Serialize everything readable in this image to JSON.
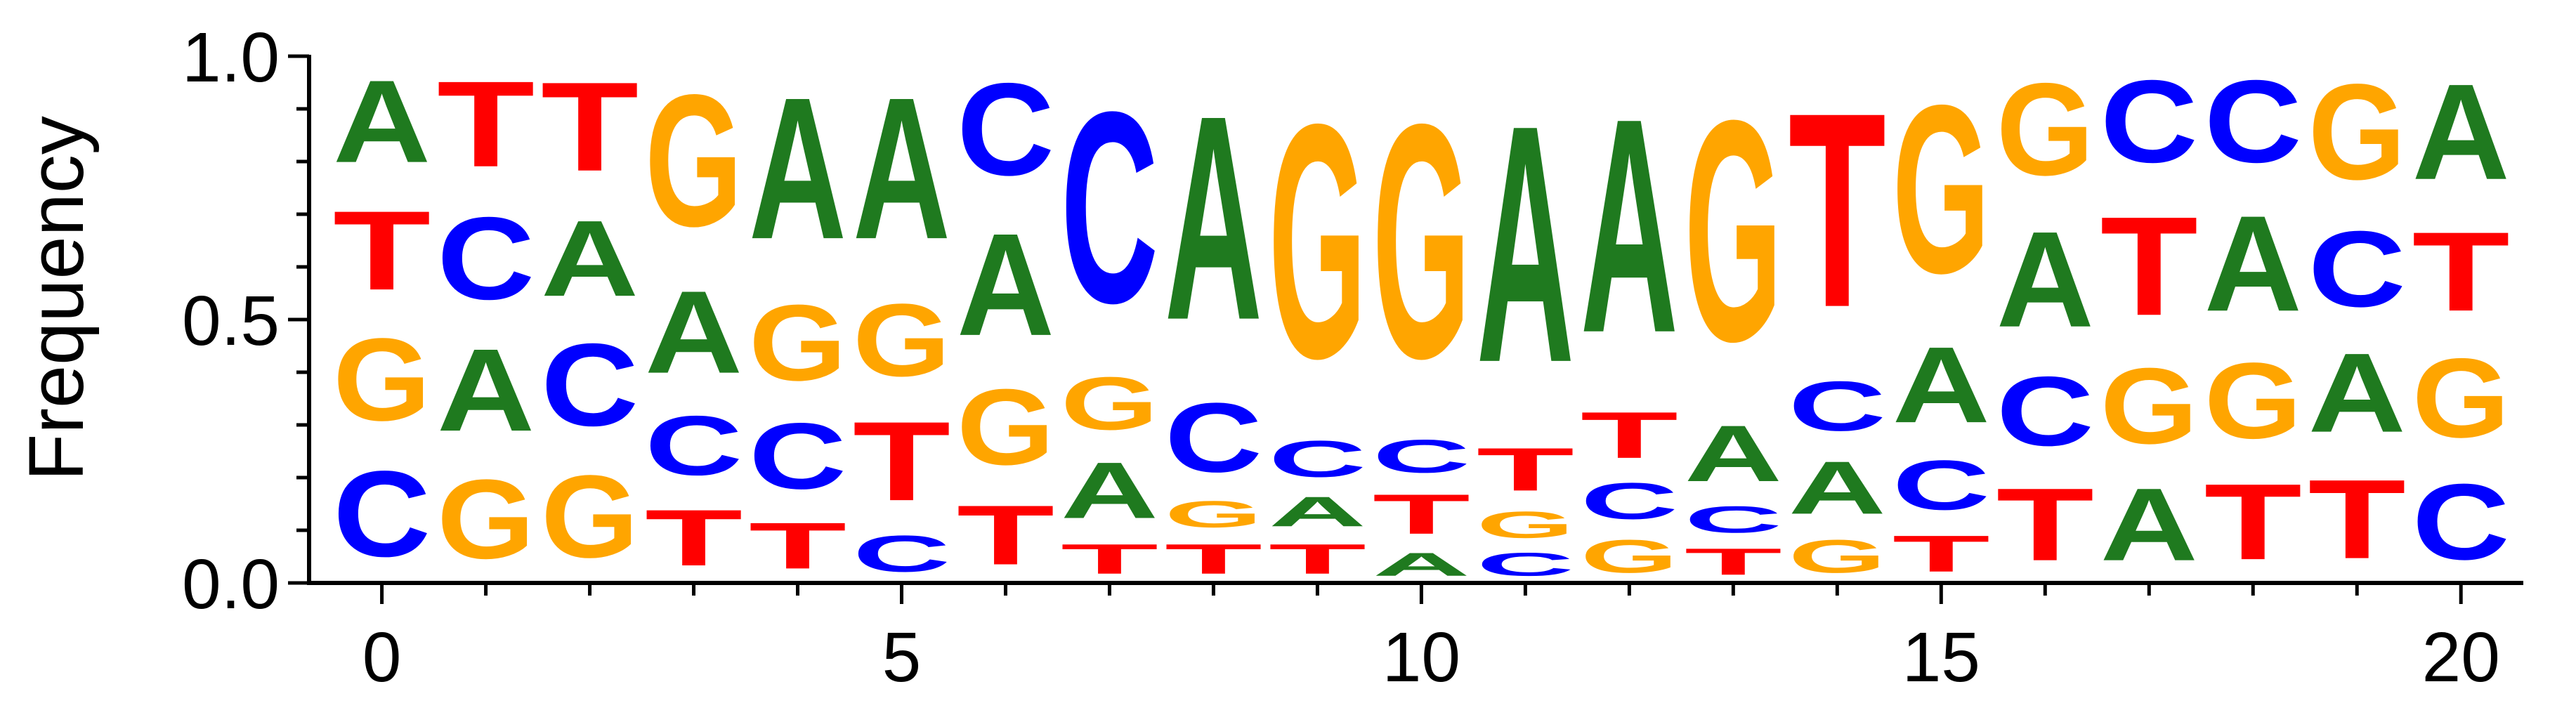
{
  "chart_data": {
    "type": "sequence-logo",
    "title": "",
    "xlabel": "",
    "ylabel": "Frequency",
    "xlim": [
      0,
      20
    ],
    "ylim": [
      0,
      1
    ],
    "xticks": [
      "0",
      "5",
      "10",
      "15",
      "20"
    ],
    "yticks": [
      "0.0",
      "0.5",
      "1.0"
    ],
    "colors": {
      "A": "#1f7a1f",
      "C": "#0000ff",
      "G": "#ffa500",
      "T": "#ff0000"
    },
    "positions": [
      {
        "pos": 0,
        "stack": [
          [
            "C",
            0.26
          ],
          [
            "G",
            0.25
          ],
          [
            "T",
            0.24
          ],
          [
            "A",
            0.25
          ]
        ]
      },
      {
        "pos": 1,
        "stack": [
          [
            "G",
            0.24
          ],
          [
            "A",
            0.25
          ],
          [
            "C",
            0.25
          ],
          [
            "T",
            0.26
          ]
        ]
      },
      {
        "pos": 2,
        "stack": [
          [
            "G",
            0.25
          ],
          [
            "C",
            0.25
          ],
          [
            "A",
            0.23
          ],
          [
            "T",
            0.27
          ]
        ]
      },
      {
        "pos": 3,
        "stack": [
          [
            "T",
            0.17
          ],
          [
            "C",
            0.18
          ],
          [
            "A",
            0.25
          ],
          [
            "G",
            0.4
          ]
        ]
      },
      {
        "pos": 4,
        "stack": [
          [
            "T",
            0.14
          ],
          [
            "C",
            0.2
          ],
          [
            "G",
            0.23
          ],
          [
            "A",
            0.43
          ]
        ]
      },
      {
        "pos": 5,
        "stack": [
          [
            "C",
            0.11
          ],
          [
            "T",
            0.24
          ],
          [
            "G",
            0.22
          ],
          [
            "A",
            0.43
          ]
        ]
      },
      {
        "pos": 6,
        "stack": [
          [
            "T",
            0.18
          ],
          [
            "G",
            0.23
          ],
          [
            "A",
            0.31
          ],
          [
            "C",
            0.28
          ]
        ]
      },
      {
        "pos": 7,
        "stack": [
          [
            "T",
            0.09
          ],
          [
            "A",
            0.17
          ],
          [
            "G",
            0.16
          ],
          [
            "C",
            0.58
          ]
        ]
      },
      {
        "pos": 8,
        "stack": [
          [
            "T",
            0.09
          ],
          [
            "G",
            0.08
          ],
          [
            "C",
            0.21
          ],
          [
            "A",
            0.62
          ]
        ]
      },
      {
        "pos": 9,
        "stack": [
          [
            "T",
            0.09
          ],
          [
            "A",
            0.09
          ],
          [
            "C",
            0.11
          ],
          [
            "G",
            0.71
          ]
        ]
      },
      {
        "pos": 10,
        "stack": [
          [
            "A",
            0.07
          ],
          [
            "T",
            0.12
          ],
          [
            "C",
            0.1
          ],
          [
            "G",
            0.71
          ]
        ]
      },
      {
        "pos": 11,
        "stack": [
          [
            "C",
            0.07
          ],
          [
            "G",
            0.08
          ],
          [
            "T",
            0.13
          ],
          [
            "A",
            0.72
          ]
        ]
      },
      {
        "pos": 12,
        "stack": [
          [
            "G",
            0.1
          ],
          [
            "C",
            0.11
          ],
          [
            "T",
            0.14
          ],
          [
            "A",
            0.65
          ]
        ]
      },
      {
        "pos": 13,
        "stack": [
          [
            "T",
            0.08
          ],
          [
            "C",
            0.08
          ],
          [
            "A",
            0.17
          ],
          [
            "G",
            0.67
          ]
        ]
      },
      {
        "pos": 14,
        "stack": [
          [
            "G",
            0.1
          ],
          [
            "A",
            0.16
          ],
          [
            "C",
            0.15
          ],
          [
            "T",
            0.59
          ]
        ]
      },
      {
        "pos": 15,
        "stack": [
          [
            "T",
            0.11
          ],
          [
            "C",
            0.15
          ],
          [
            "A",
            0.23
          ],
          [
            "G",
            0.51
          ]
        ]
      },
      {
        "pos": 16,
        "stack": [
          [
            "T",
            0.22
          ],
          [
            "C",
            0.21
          ],
          [
            "A",
            0.29
          ],
          [
            "G",
            0.28
          ]
        ]
      },
      {
        "pos": 17,
        "stack": [
          [
            "A",
            0.22
          ],
          [
            "G",
            0.23
          ],
          [
            "T",
            0.3
          ],
          [
            "C",
            0.25
          ]
        ]
      },
      {
        "pos": 18,
        "stack": [
          [
            "T",
            0.23
          ],
          [
            "G",
            0.23
          ],
          [
            "A",
            0.29
          ],
          [
            "C",
            0.25
          ]
        ]
      },
      {
        "pos": 19,
        "stack": [
          [
            "T",
            0.24
          ],
          [
            "A",
            0.24
          ],
          [
            "C",
            0.23
          ],
          [
            "G",
            0.29
          ]
        ]
      },
      {
        "pos": 20,
        "stack": [
          [
            "C",
            0.23
          ],
          [
            "G",
            0.24
          ],
          [
            "T",
            0.24
          ],
          [
            "A",
            0.29
          ]
        ]
      }
    ]
  }
}
